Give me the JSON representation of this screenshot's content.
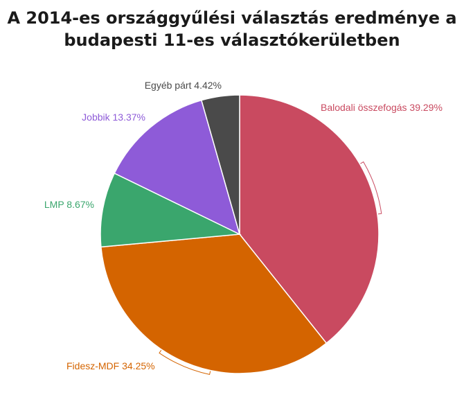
{
  "chart_data": {
    "type": "pie",
    "title_lines": [
      "A 2014-es országgyűlési választás eredménye a",
      "budapesti 11-es választókerületben"
    ],
    "slices": [
      {
        "label": "Balodali összefogás 39.29%",
        "value": 39.29,
        "color": "#c94a60"
      },
      {
        "label": "Fidesz-MDF 34.25%",
        "value": 34.25,
        "color": "#d46400"
      },
      {
        "label": "LMP 8.67%",
        "value": 8.67,
        "color": "#3aa66d"
      },
      {
        "label": "Jobbik 13.37%",
        "value": 13.37,
        "color": "#8e5bd8"
      },
      {
        "label": "Egyéb párt 4.42%",
        "value": 4.42,
        "color": "#4a4a4a"
      }
    ]
  }
}
